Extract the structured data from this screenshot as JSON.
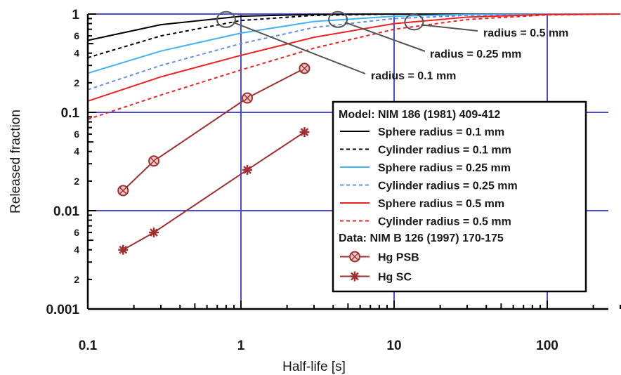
{
  "chart_data": {
    "type": "line",
    "xlabel": "Half-life [s]",
    "ylabel": "Released fraction",
    "x_scale": "log",
    "y_scale": "log",
    "xlim": [
      0.1,
      300
    ],
    "ylim": [
      0.001,
      1
    ],
    "x_ticks": [
      "0.1",
      "1",
      "10",
      "100"
    ],
    "y_ticks": [
      "0.001",
      "0.01",
      "0.1",
      "1"
    ],
    "y_minor_labels": [
      "2",
      "4",
      "6",
      "2",
      "4",
      "6",
      "2",
      "4",
      "6",
      "2",
      "4",
      "6"
    ],
    "grid": "major lines in blue",
    "legend_position": "center-right",
    "legend": {
      "model_header": "Model: NIM 186 (1981) 409-412",
      "data_header": "Data: NIM B 126 (1997) 170-175"
    },
    "series": [
      {
        "name": "Sphere radius = 0.1 mm",
        "color": "#000000",
        "dash": "solid",
        "marker": "none",
        "x": [
          0.1,
          0.3,
          1,
          3,
          10,
          30,
          100,
          300
        ],
        "y": [
          0.54,
          0.78,
          0.95,
          0.99,
          1.0,
          1.0,
          1.0,
          1.0
        ]
      },
      {
        "name": "Cylinder radius = 0.1 mm",
        "color": "#000000",
        "dash": "dotted",
        "marker": "none",
        "x": [
          0.1,
          0.3,
          1,
          3,
          10,
          30,
          100,
          300
        ],
        "y": [
          0.36,
          0.6,
          0.86,
          0.97,
          1.0,
          1.0,
          1.0,
          1.0
        ]
      },
      {
        "name": "Sphere radius = 0.25 mm",
        "color": "#44b4ee",
        "dash": "solid",
        "marker": "none",
        "x": [
          0.1,
          0.3,
          1,
          3,
          10,
          30,
          100,
          300
        ],
        "y": [
          0.25,
          0.42,
          0.64,
          0.84,
          0.95,
          0.99,
          1.0,
          1.0
        ]
      },
      {
        "name": "Cylinder radius = 0.25 mm",
        "color": "#6a8ee8",
        "dash": "dotted",
        "marker": "none",
        "x": [
          0.1,
          0.3,
          1,
          3,
          10,
          30,
          100,
          300
        ],
        "y": [
          0.17,
          0.3,
          0.5,
          0.73,
          0.9,
          0.97,
          1.0,
          1.0
        ]
      },
      {
        "name": "Sphere radius = 0.5 mm",
        "color": "#ee2222",
        "dash": "solid",
        "marker": "none",
        "x": [
          0.1,
          0.3,
          1,
          3,
          10,
          30,
          100,
          300
        ],
        "y": [
          0.13,
          0.23,
          0.38,
          0.58,
          0.8,
          0.93,
          0.99,
          1.0
        ]
      },
      {
        "name": "Cylinder radius = 0.5 mm",
        "color": "#ee2222",
        "dash": "dotted",
        "marker": "none",
        "x": [
          0.1,
          0.3,
          1,
          3,
          10,
          30,
          100,
          300
        ],
        "y": [
          0.085,
          0.15,
          0.27,
          0.45,
          0.7,
          0.88,
          0.98,
          1.0
        ]
      },
      {
        "name": "Hg PSB",
        "color": "#a03030",
        "dash": "solid",
        "marker": "circle",
        "x": [
          0.17,
          0.27,
          1.1,
          2.6
        ],
        "y": [
          0.016,
          0.032,
          0.14,
          0.28
        ]
      },
      {
        "name": "Hg SC",
        "color": "#a03030",
        "dash": "solid",
        "marker": "star",
        "x": [
          0.17,
          0.27,
          1.1,
          2.6
        ],
        "y": [
          0.004,
          0.006,
          0.026,
          0.063
        ]
      }
    ],
    "annotations": [
      {
        "text": "radius = 0.1 mm",
        "x": 0.8,
        "y": 0.88
      },
      {
        "text": "radius = 0.25 mm",
        "x": 4.3,
        "y": 0.88
      },
      {
        "text": "radius = 0.5 mm",
        "x": 13.5,
        "y": 0.83
      }
    ]
  }
}
